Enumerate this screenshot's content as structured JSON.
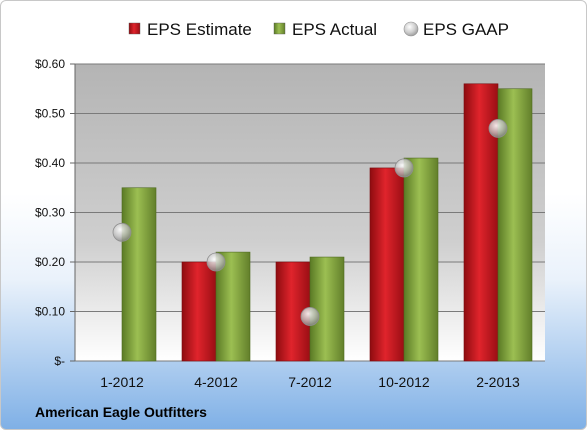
{
  "chart_data": {
    "type": "bar",
    "categories": [
      "1-2012",
      "4-2012",
      "7-2012",
      "10-2012",
      "2-2013"
    ],
    "series": [
      {
        "name": "EPS Estimate",
        "values": [
          null,
          0.2,
          0.2,
          0.39,
          0.56
        ],
        "color": "#c8141c"
      },
      {
        "name": "EPS Actual",
        "values": [
          0.35,
          0.22,
          0.21,
          0.41,
          0.55
        ],
        "color": "#7f9e3c"
      },
      {
        "name": "EPS GAAP",
        "kind": "marker",
        "values": [
          0.26,
          0.2,
          0.09,
          0.39,
          0.47
        ],
        "color": "#b8b8b8"
      }
    ],
    "y_ticks": [
      "$-",
      "$0.10",
      "$0.20",
      "$0.30",
      "$0.40",
      "$0.50",
      "$0.60"
    ],
    "ylim": [
      0,
      0.6
    ],
    "grid": true,
    "legend": "top",
    "title": "",
    "xlabel": "",
    "ylabel": ""
  },
  "footer": {
    "company": "American Eagle Outfitters"
  }
}
